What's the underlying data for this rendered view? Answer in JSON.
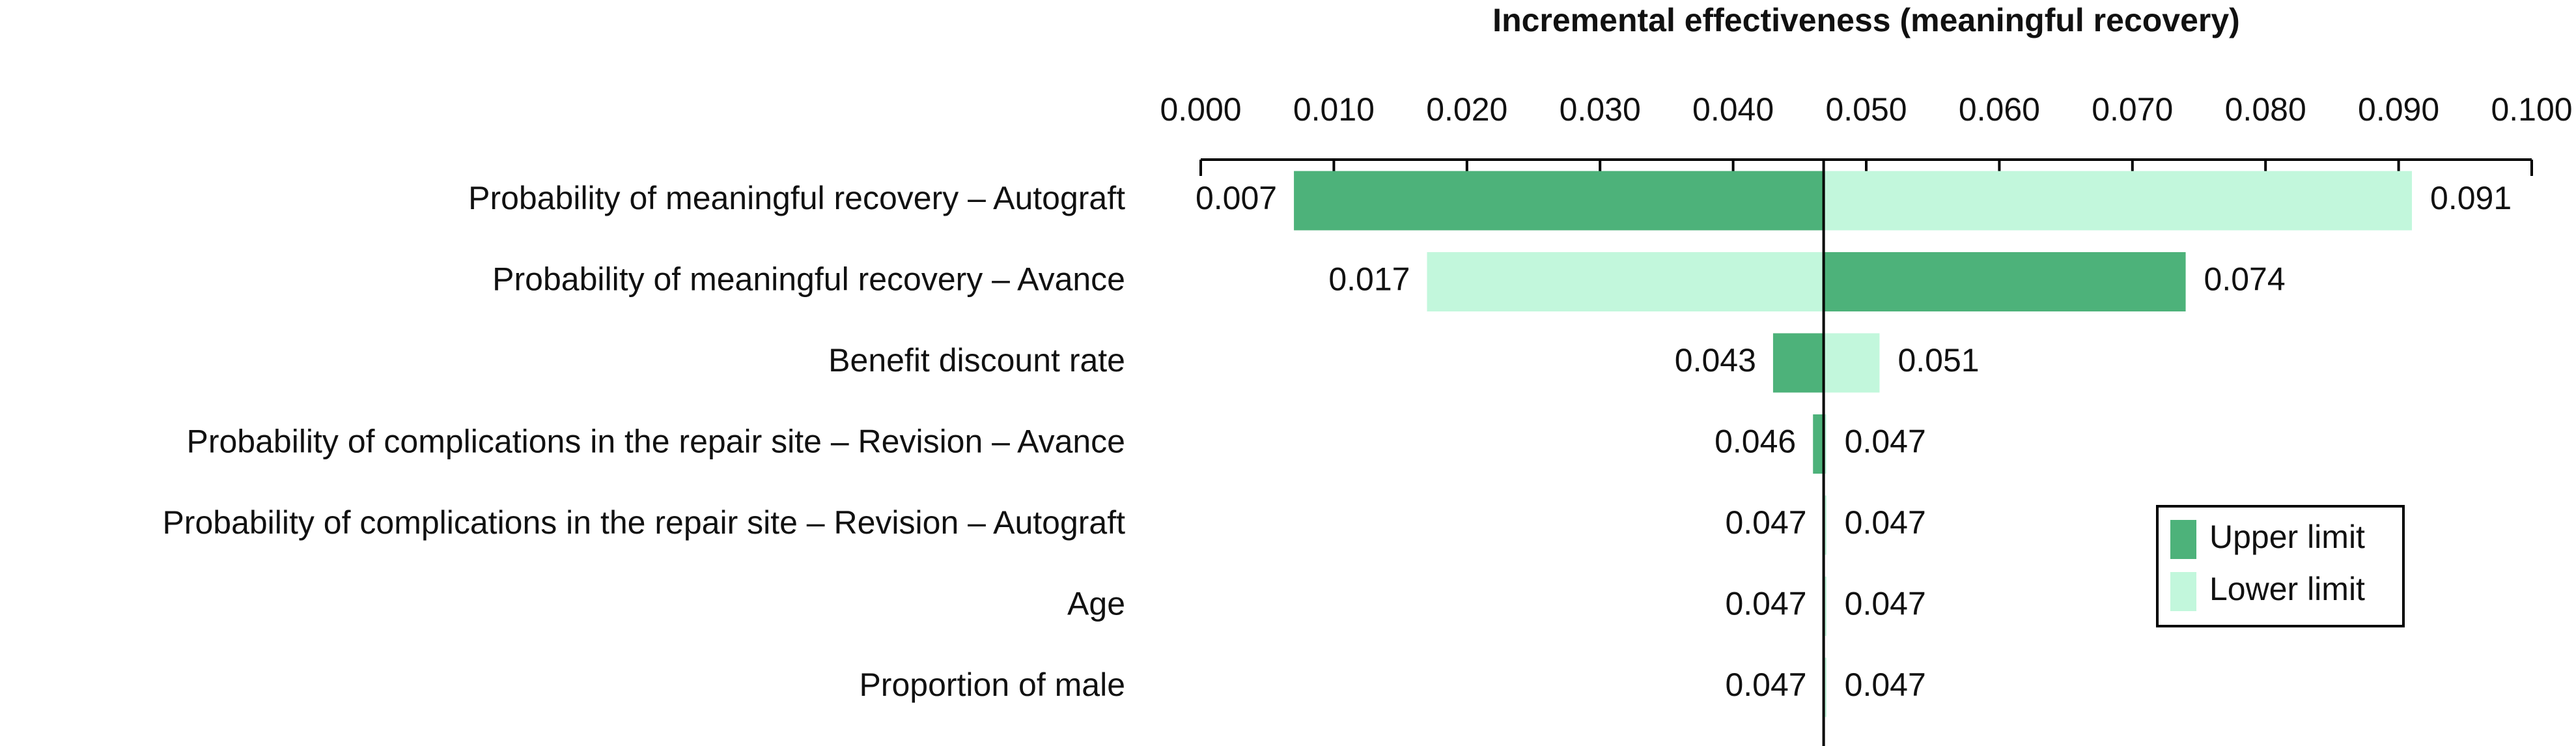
{
  "chart_data": {
    "type": "tornado",
    "title": "Incremental effectiveness (meaningful recovery)",
    "categories": [
      "Probability of meaningful recovery – Autograft",
      "Probability of meaningful recovery – Avance",
      "Benefit discount rate",
      "Probability of complications in the repair site – Revision – Avance",
      "Probability of complications in the repair site – Revision – Autograft",
      "Age",
      "Proportion of male"
    ],
    "base": 0.0468,
    "series": [
      {
        "name": "Upper limit",
        "color": "#4db27a",
        "values": [
          0.007,
          0.074,
          0.043,
          0.046,
          0.047,
          0.047,
          0.047
        ]
      },
      {
        "name": "Lower limit",
        "color": "#c2f7dc",
        "values": [
          0.091,
          0.017,
          0.051,
          0.047,
          0.047,
          0.047,
          0.047
        ]
      }
    ],
    "xlim": [
      0,
      0.1
    ],
    "xticks": [
      {
        "value": 0,
        "label": "0.000"
      },
      {
        "value": 0.01,
        "label": "0.010"
      },
      {
        "value": 0.02,
        "label": "0.020"
      },
      {
        "value": 0.03,
        "label": "0.030"
      },
      {
        "value": 0.04,
        "label": "0.040"
      },
      {
        "value": 0.05,
        "label": "0.050"
      },
      {
        "value": 0.06,
        "label": "0.060"
      },
      {
        "value": 0.07,
        "label": "0.070"
      },
      {
        "value": 0.08,
        "label": "0.080"
      },
      {
        "value": 0.09,
        "label": "0.090"
      },
      {
        "value": 0.1,
        "label": "0.100"
      }
    ],
    "legend": "right"
  }
}
